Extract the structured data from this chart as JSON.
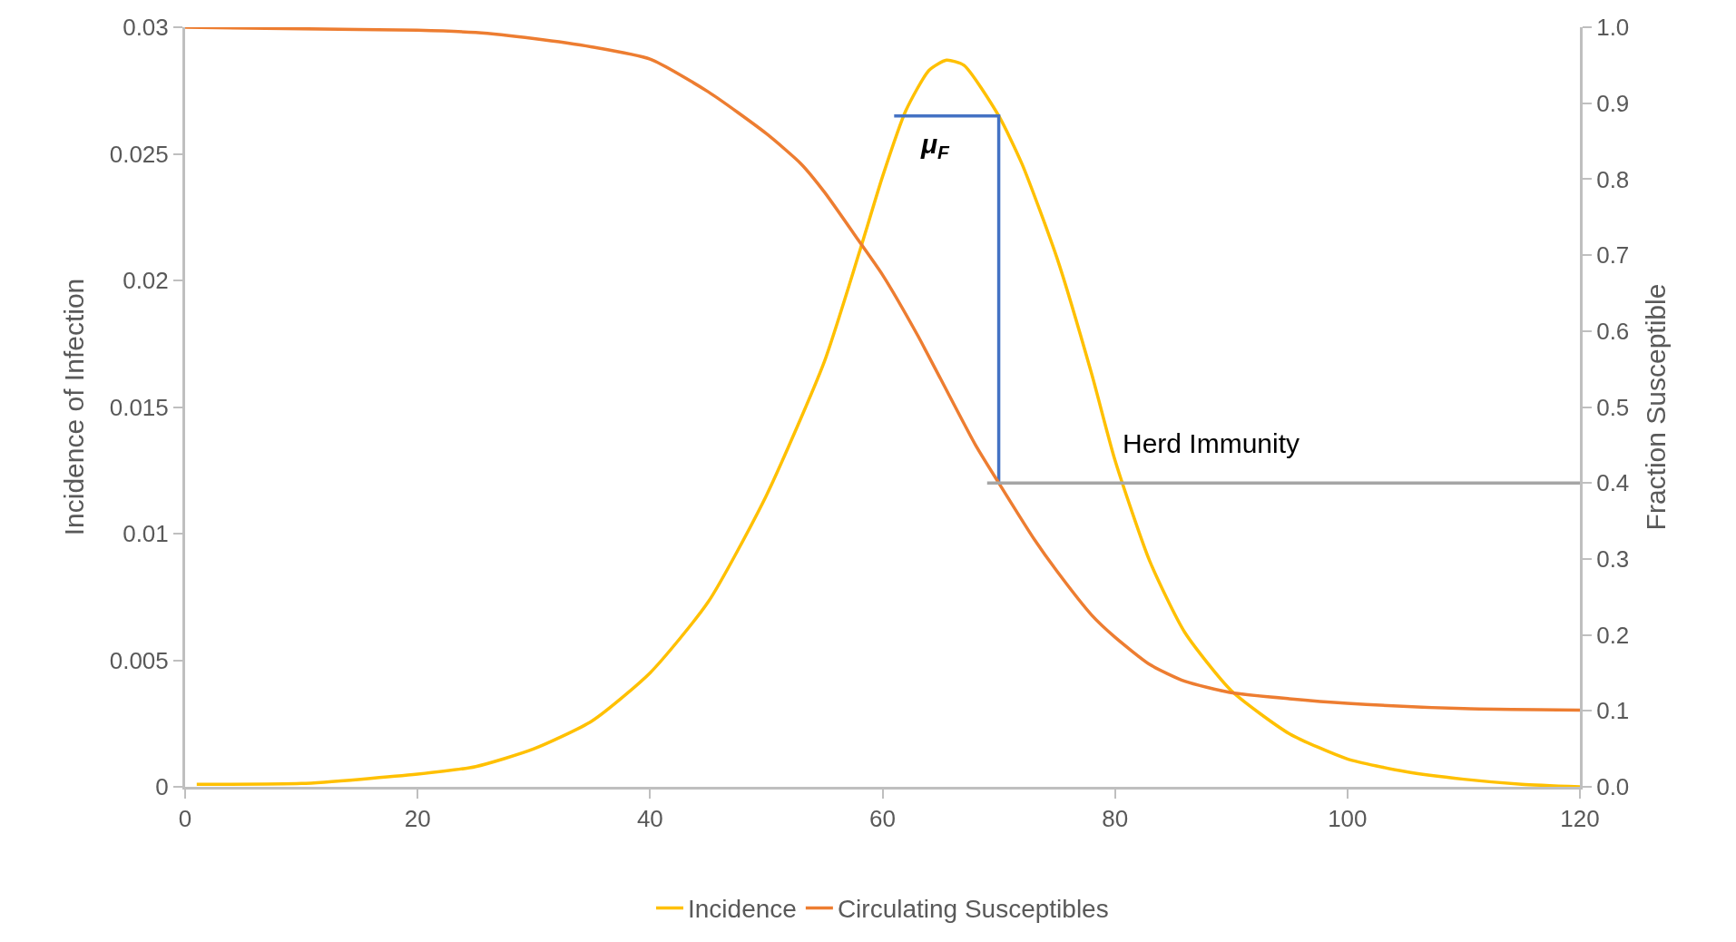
{
  "chart_data": {
    "type": "line",
    "xlabel": null,
    "ylabel": "Incidence of Infection",
    "y2label": "Fraction Susceptible",
    "xlim": [
      0,
      120
    ],
    "xticks": [
      0,
      20,
      40,
      60,
      80,
      100,
      120
    ],
    "ylim": [
      0,
      0.03
    ],
    "yticks": [
      0,
      0.005,
      0.01,
      0.015,
      0.02,
      0.025,
      0.03
    ],
    "y2lim": [
      0,
      1
    ],
    "y2ticks": [
      {
        "value": 0,
        "label": "0.0"
      },
      0.1,
      0.2,
      0.3,
      0.4,
      0.5,
      0.6,
      0.7,
      0.8,
      0.9,
      {
        "value": 1,
        "label": "1.0"
      }
    ],
    "grid": false,
    "legend": "bottom",
    "marker": "none",
    "line_style": "solid",
    "series": [
      {
        "name": "Incidence",
        "color": "#ffc000",
        "x": [
          1,
          10,
          20,
          25,
          30,
          35,
          40,
          45,
          50,
          55,
          58,
          60,
          62,
          64,
          65.5,
          67,
          70,
          72,
          75,
          78,
          80,
          83,
          86,
          90,
          95,
          100,
          105,
          110,
          115,
          120
        ],
        "values": [
          0.0001,
          0.00013,
          0.0005,
          0.0008,
          0.0015,
          0.0026,
          0.0045,
          0.0073,
          0.0115,
          0.0168,
          0.0211,
          0.0241,
          0.0267,
          0.0283,
          0.0287,
          0.0285,
          0.0265,
          0.0246,
          0.0209,
          0.0163,
          0.0129,
          0.0089,
          0.0061,
          0.0038,
          0.0021,
          0.0011,
          0.0006,
          0.0003,
          0.0001,
          0
        ]
      },
      {
        "name": "Circulating Susceptibles",
        "color": "#ed7d31",
        "axis": "y2",
        "x": [
          0,
          10,
          20,
          25,
          30,
          35,
          40,
          45,
          50,
          53,
          55,
          58,
          60,
          63,
          65,
          68,
          70,
          73,
          75,
          78,
          80,
          83,
          86,
          90,
          95,
          100,
          110,
          120
        ],
        "values": [
          1.0,
          0.998,
          0.996,
          0.993,
          0.985,
          0.974,
          0.958,
          0.915,
          0.86,
          0.82,
          0.783,
          0.718,
          0.674,
          0.595,
          0.537,
          0.45,
          0.4,
          0.327,
          0.284,
          0.226,
          0.197,
          0.161,
          0.139,
          0.124,
          0.116,
          0.11,
          0.103,
          0.101
        ]
      },
      {
        "type": "line",
        "color": "#4472c4",
        "x": [
          61,
          70,
          70
        ],
        "values": [
          0.0265,
          0.0265,
          0.012
        ]
      },
      {
        "type": "line",
        "color": "#a5a5a5",
        "axis": "y2",
        "x": [
          69,
          120
        ],
        "values": [
          0.4,
          0.4
        ]
      }
    ],
    "annotations": [
      "μ$_{F}$",
      "Herd Immunity"
    ]
  }
}
